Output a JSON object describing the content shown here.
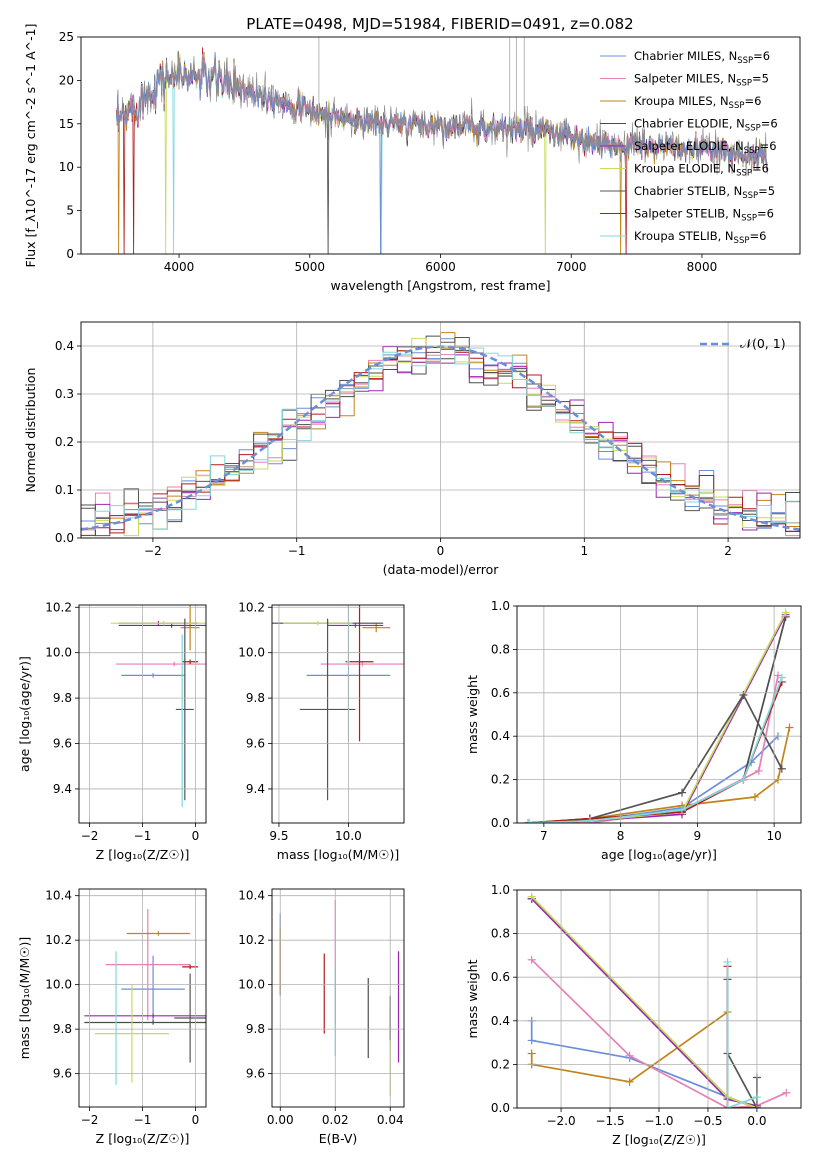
{
  "figure_title": "PLATE=0498, MJD=51984, FIBERID=0491, z=0.082",
  "colors": {
    "Chabrier MILES": "#6a8fd8",
    "Salpeter MILES": "#e87fb8",
    "Kroupa MILES": "#c28418",
    "Chabrier ELODIE": "#4c4c4c",
    "Salpeter ELODIE": "#9b27b0",
    "Kroupa ELODIE": "#c6dc5c",
    "Chabrier STELIB": "#555555",
    "Salpeter STELIB": "#b01c1c",
    "Kroupa STELIB": "#7fd8dc",
    "normal": "#6a8fd8",
    "orange": "#e07b1a",
    "olive": "#c6dc5c"
  },
  "chart_data": [
    {
      "id": "spectrum",
      "type": "line",
      "xlabel": "wavelength [Angstrom, rest frame]",
      "ylabel": "Flux [f_λ10^-17 erg cm^-2 s^-1 A^-1]",
      "xlim": [
        3250,
        8750
      ],
      "ylim": [
        0,
        25
      ],
      "grid": false,
      "xticks": [
        "4000",
        "5000",
        "6000",
        "7000",
        "8000"
      ],
      "yticks": [
        "0",
        "5",
        "10",
        "15",
        "20",
        "25"
      ],
      "legend_position": "upper right",
      "legend": [
        {
          "label": "Chabrier MILES, N",
          "sub": "SSP",
          "suffix": "=6"
        },
        {
          "label": "Salpeter MILES, N",
          "sub": "SSP",
          "suffix": "=5"
        },
        {
          "label": "Kroupa MILES, N",
          "sub": "SSP",
          "suffix": "=6"
        },
        {
          "label": "Chabrier ELODIE, N",
          "sub": "SSP",
          "suffix": "=6"
        },
        {
          "label": "Salpeter ELODIE, N",
          "sub": "SSP",
          "suffix": "=6"
        },
        {
          "label": "Kroupa ELODIE, N",
          "sub": "SSP",
          "suffix": "=6"
        },
        {
          "label": "Chabrier STELIB, N",
          "sub": "SSP",
          "suffix": "=5"
        },
        {
          "label": "Salpeter STELIB, N",
          "sub": "SSP",
          "suffix": "=6"
        },
        {
          "label": "Kroupa STELIB, N",
          "sub": "SSP",
          "suffix": "=6"
        }
      ],
      "continuum": [
        [
          3520,
          15
        ],
        [
          3700,
          17.5
        ],
        [
          3850,
          20
        ],
        [
          4000,
          20.5
        ],
        [
          4200,
          20.5
        ],
        [
          4500,
          19
        ],
        [
          4800,
          17.5
        ],
        [
          5000,
          16.5
        ],
        [
          5300,
          15.5
        ],
        [
          5600,
          15
        ],
        [
          6000,
          14.8
        ],
        [
          6500,
          14.5
        ],
        [
          6800,
          14
        ],
        [
          7000,
          13.5
        ],
        [
          7200,
          12.5
        ],
        [
          7500,
          12.5
        ],
        [
          7800,
          12.2
        ],
        [
          8200,
          11.8
        ],
        [
          8500,
          11
        ]
      ]
    },
    {
      "id": "residuals",
      "type": "histogram",
      "xlabel": "(data-model)/error",
      "ylabel": "Normed distribution",
      "xlim": [
        -2.5,
        2.5
      ],
      "ylim": [
        0,
        0.45
      ],
      "grid": true,
      "xticks": [
        "−2",
        "−1",
        "0",
        "1",
        "2"
      ],
      "yticks": [
        "0.0",
        "0.1",
        "0.2",
        "0.3",
        "0.4"
      ],
      "legend_position": "upper right",
      "reference_label": "𝒩(0, 1)",
      "bin_width": 0.1
    },
    {
      "id": "age-vs-Z",
      "type": "errorbar",
      "xlabel": "Z [log₁₀(Z/Z☉)]",
      "ylabel": "age  [log₁₀(age/yr)]",
      "xlim": [
        -2.2,
        0.2
      ],
      "ylim": [
        9.25,
        10.21
      ],
      "grid": true,
      "xticks": [
        "−2",
        "−1",
        "0"
      ],
      "yticks": [
        "9.4",
        "9.6",
        "9.8",
        "10.0",
        "10.2"
      ],
      "points": [
        {
          "series": "Chabrier MILES",
          "x": -0.8,
          "y": 9.9,
          "xerr": 0.6,
          "yerr": 0.01
        },
        {
          "series": "Salpeter MILES",
          "x": -0.4,
          "y": 9.95,
          "xerr": 1.1,
          "yerr": 0.01
        },
        {
          "series": "Kroupa MILES",
          "x": -0.1,
          "y": 10.11,
          "xerr": 0.18,
          "yerr": 0.1
        },
        {
          "series": "Chabrier ELODIE",
          "x": -0.45,
          "y": 10.12,
          "xerr": 1.0,
          "yerr": 0.01
        },
        {
          "series": "Salpeter ELODIE",
          "x": -0.7,
          "y": 10.13,
          "xerr": 0.75,
          "yerr": 0.01
        },
        {
          "series": "Kroupa ELODIE",
          "x": -0.6,
          "y": 10.13,
          "xerr": 1.0,
          "yerr": 0.01
        },
        {
          "series": "Chabrier STELIB",
          "x": -0.2,
          "y": 9.75,
          "xerr": 0.17,
          "yerr": 0.4
        },
        {
          "series": "Salpeter STELIB",
          "x": -0.1,
          "y": 9.96,
          "xerr": 0.15,
          "yerr": 0.01
        },
        {
          "series": "Kroupa STELIB",
          "x": -0.25,
          "y": 9.7,
          "xerr": 0.01,
          "yerr": 0.38
        }
      ]
    },
    {
      "id": "age-vs-mass",
      "type": "errorbar",
      "xlabel": "mass [log₁₀(M/M☉)]",
      "ylabel": "",
      "xlim": [
        9.45,
        10.4
      ],
      "ylim": [
        9.25,
        10.21
      ],
      "grid": true,
      "xticks": [
        "9.5",
        "10.0"
      ],
      "yticks": [
        "9.4",
        "9.6",
        "9.8",
        "10.0",
        "10.2"
      ],
      "points": [
        {
          "series": "Chabrier MILES",
          "x": 10.0,
          "y": 9.9,
          "xerr": 0.3,
          "yerr": 0.01
        },
        {
          "series": "Salpeter MILES",
          "x": 10.1,
          "y": 9.95,
          "xerr": 0.3,
          "yerr": 0.01
        },
        {
          "series": "Kroupa MILES",
          "x": 10.2,
          "y": 10.11,
          "xerr": 0.1,
          "yerr": 0.02
        },
        {
          "series": "Chabrier ELODIE",
          "x": 9.85,
          "y": 10.13,
          "xerr": 0.4,
          "yerr": 0.01
        },
        {
          "series": "Salpeter ELODIE",
          "x": 10.05,
          "y": 10.12,
          "xerr": 0.2,
          "yerr": 0.01
        },
        {
          "series": "Kroupa ELODIE",
          "x": 9.78,
          "y": 10.13,
          "xerr": 0.25,
          "yerr": 0.01
        },
        {
          "series": "Chabrier STELIB",
          "x": 9.85,
          "y": 9.75,
          "xerr": 0.2,
          "yerr": 0.4
        },
        {
          "series": "Salpeter STELIB",
          "x": 10.08,
          "y": 9.96,
          "xerr": 0.1,
          "yerr": 0.35
        },
        {
          "series": "Kroupa STELIB",
          "x": 10.0,
          "y": 9.96,
          "xerr": 0.01,
          "yerr": 0.35
        }
      ]
    },
    {
      "id": "weight-vs-age",
      "type": "line",
      "xlabel": "age  [log₁₀(age/yr)]",
      "ylabel": "mass weight",
      "xlim": [
        6.65,
        10.35
      ],
      "ylim": [
        0,
        1
      ],
      "grid": true,
      "xticks": [
        "7",
        "8",
        "9",
        "10"
      ],
      "yticks": [
        "0.0",
        "0.2",
        "0.4",
        "0.6",
        "0.8",
        "1.0"
      ],
      "series": [
        {
          "name": "Chabrier MILES",
          "x": [
            6.8,
            7.6,
            8.8,
            9.7,
            10.05
          ],
          "y": [
            0.0,
            0.01,
            0.07,
            0.28,
            0.4
          ]
        },
        {
          "name": "Salpeter MILES",
          "x": [
            6.8,
            7.6,
            8.8,
            9.8,
            10.05
          ],
          "y": [
            0.0,
            0.0,
            0.06,
            0.24,
            0.68
          ]
        },
        {
          "name": "Kroupa MILES",
          "x": [
            6.8,
            7.6,
            8.8,
            9.75,
            10.05,
            10.2
          ],
          "y": [
            0.0,
            0.02,
            0.08,
            0.12,
            0.2,
            0.44
          ]
        },
        {
          "name": "Chabrier ELODIE",
          "x": [
            6.8,
            7.6,
            8.8,
            9.6,
            10.15
          ],
          "y": [
            0.0,
            0.01,
            0.05,
            0.2,
            0.95
          ]
        },
        {
          "name": "Salpeter ELODIE",
          "x": [
            6.8,
            7.6,
            8.8,
            10.15
          ],
          "y": [
            0.0,
            0.01,
            0.04,
            0.96
          ]
        },
        {
          "name": "Kroupa ELODIE",
          "x": [
            6.8,
            7.6,
            8.8,
            10.15
          ],
          "y": [
            0.0,
            0.01,
            0.05,
            0.97
          ]
        },
        {
          "name": "Chabrier STELIB",
          "x": [
            6.8,
            7.6,
            8.8,
            9.6,
            10.1
          ],
          "y": [
            0.0,
            0.02,
            0.14,
            0.59,
            0.25
          ]
        },
        {
          "name": "Salpeter STELIB",
          "x": [
            6.8,
            7.6,
            8.8,
            9.6,
            10.1
          ],
          "y": [
            0.0,
            0.02,
            0.05,
            0.2,
            0.65
          ]
        },
        {
          "name": "Kroupa STELIB",
          "x": [
            6.8,
            7.6,
            8.8,
            9.6,
            10.1
          ],
          "y": [
            0.0,
            0.01,
            0.06,
            0.2,
            0.67
          ]
        }
      ]
    },
    {
      "id": "mass-vs-Z",
      "type": "errorbar",
      "xlabel": "Z [log₁₀(Z/Z☉)]",
      "ylabel": "mass [log₁₀(M/M☉)]",
      "xlim": [
        -2.2,
        0.2
      ],
      "ylim": [
        9.45,
        10.43
      ],
      "grid": true,
      "xticks": [
        "−2",
        "−1",
        "0"
      ],
      "yticks": [
        "9.6",
        "9.8",
        "10.0",
        "10.2",
        "10.4"
      ],
      "points": [
        {
          "series": "Chabrier MILES",
          "x": -0.8,
          "y": 9.98,
          "xerr": 0.6,
          "yerr": 0.15
        },
        {
          "series": "Salpeter MILES",
          "x": -0.9,
          "y": 10.09,
          "xerr": 0.8,
          "yerr": 0.25
        },
        {
          "series": "Kroupa MILES",
          "x": -0.7,
          "y": 10.23,
          "xerr": 0.6,
          "yerr": 0.01
        },
        {
          "series": "Chabrier ELODIE",
          "x": -0.8,
          "y": 9.83,
          "xerr": 1.3,
          "yerr": 0.01
        },
        {
          "series": "Salpeter ELODIE",
          "x": -0.8,
          "y": 9.86,
          "xerr": 1.3,
          "yerr": 0.01
        },
        {
          "series": "Kroupa ELODIE",
          "x": -1.2,
          "y": 9.78,
          "xerr": 0.7,
          "yerr": 0.22
        },
        {
          "series": "Chabrier STELIB",
          "x": -0.1,
          "y": 9.85,
          "xerr": 0.3,
          "yerr": 0.2
        },
        {
          "series": "Salpeter STELIB",
          "x": -0.1,
          "y": 10.08,
          "xerr": 0.15,
          "yerr": 0.01
        },
        {
          "series": "Kroupa STELIB",
          "x": -1.5,
          "y": 9.85,
          "xerr": 0.01,
          "yerr": 0.3
        }
      ]
    },
    {
      "id": "mass-vs-EBV",
      "type": "errorbar",
      "xlabel": "E(B-V)",
      "ylabel": "",
      "xlim": [
        -0.003,
        0.045
      ],
      "ylim": [
        9.45,
        10.43
      ],
      "grid": true,
      "xticks": [
        "0.00",
        "0.02",
        "0.04"
      ],
      "yticks": [
        "9.6",
        "9.8",
        "10.0",
        "10.2",
        "10.4"
      ],
      "points": [
        {
          "series": "Chabrier MILES",
          "x": 0.0,
          "y": 10.14,
          "xerr": 0,
          "yerr": 0.18
        },
        {
          "series": "Salpeter MILES",
          "x": 0.02,
          "y": 10.1,
          "xerr": 0,
          "yerr": 0.28
        },
        {
          "series": "Kroupa MILES",
          "x": 0.0,
          "y": 10.1,
          "xerr": 0,
          "yerr": 0.15
        },
        {
          "series": "Chabrier ELODIE",
          "x": 0.032,
          "y": 9.85,
          "xerr": 0,
          "yerr": 0.18
        },
        {
          "series": "Salpeter ELODIE",
          "x": 0.043,
          "y": 9.9,
          "xerr": 0,
          "yerr": 0.25
        },
        {
          "series": "Kroupa ELODIE",
          "x": 0.04,
          "y": 9.7,
          "xerr": 0,
          "yerr": 0.2
        },
        {
          "series": "Chabrier STELIB",
          "x": 0.04,
          "y": 9.85,
          "xerr": 0,
          "yerr": 0.1
        },
        {
          "series": "Salpeter STELIB",
          "x": 0.016,
          "y": 9.96,
          "xerr": 0,
          "yerr": 0.18
        },
        {
          "series": "Kroupa STELIB",
          "x": 0.02,
          "y": 9.88,
          "xerr": 0,
          "yerr": 0.2
        }
      ]
    },
    {
      "id": "weight-vs-Z",
      "type": "line",
      "xlabel": "Z [log₁₀(Z/Z☉)]",
      "ylabel": "mass weight",
      "xlim": [
        -2.45,
        0.45
      ],
      "ylim": [
        0,
        1
      ],
      "grid": true,
      "xticks": [
        "−2.0",
        "−1.5",
        "−1.0",
        "−0.5",
        "0.0"
      ],
      "yticks": [
        "0.0",
        "0.2",
        "0.4",
        "0.6",
        "0.8",
        "1.0"
      ],
      "series": [
        {
          "name": "Chabrier MILES",
          "x": [
            -2.3,
            -2.3,
            -1.3,
            -0.3,
            0.0
          ],
          "y": [
            0.4,
            0.31,
            0.23,
            0.05,
            0.0
          ]
        },
        {
          "name": "Salpeter MILES",
          "x": [
            -2.3,
            -1.3,
            -0.3,
            0.0,
            0.3
          ],
          "y": [
            0.68,
            0.24,
            0.0,
            0.01,
            0.07
          ]
        },
        {
          "name": "Kroupa MILES",
          "x": [
            -2.3,
            -2.3,
            -1.3,
            -0.3,
            -0.3,
            0.0
          ],
          "y": [
            0.25,
            0.2,
            0.12,
            0.44,
            0.0,
            0.0
          ]
        },
        {
          "name": "Chabrier ELODIE",
          "x": [
            -2.3,
            -0.3,
            0.0
          ],
          "y": [
            0.96,
            0.05,
            0.0
          ]
        },
        {
          "name": "Salpeter ELODIE",
          "x": [
            -2.3,
            -0.3,
            0.0
          ],
          "y": [
            0.96,
            0.04,
            0.01
          ]
        },
        {
          "name": "Kroupa ELODIE",
          "x": [
            -2.3,
            -0.3,
            0.0
          ],
          "y": [
            0.97,
            0.05,
            0.0
          ]
        },
        {
          "name": "Chabrier STELIB",
          "x": [
            -0.3,
            -0.3,
            0.0,
            0.0
          ],
          "y": [
            0.59,
            0.25,
            0.0,
            0.14
          ]
        },
        {
          "name": "Salpeter STELIB",
          "x": [
            -0.3,
            -0.3,
            0.0
          ],
          "y": [
            0.65,
            0.0,
            0.0
          ]
        },
        {
          "name": "Kroupa STELIB",
          "x": [
            -0.3,
            -0.3,
            0.0
          ],
          "y": [
            0.67,
            0.0,
            0.05
          ]
        }
      ]
    }
  ]
}
